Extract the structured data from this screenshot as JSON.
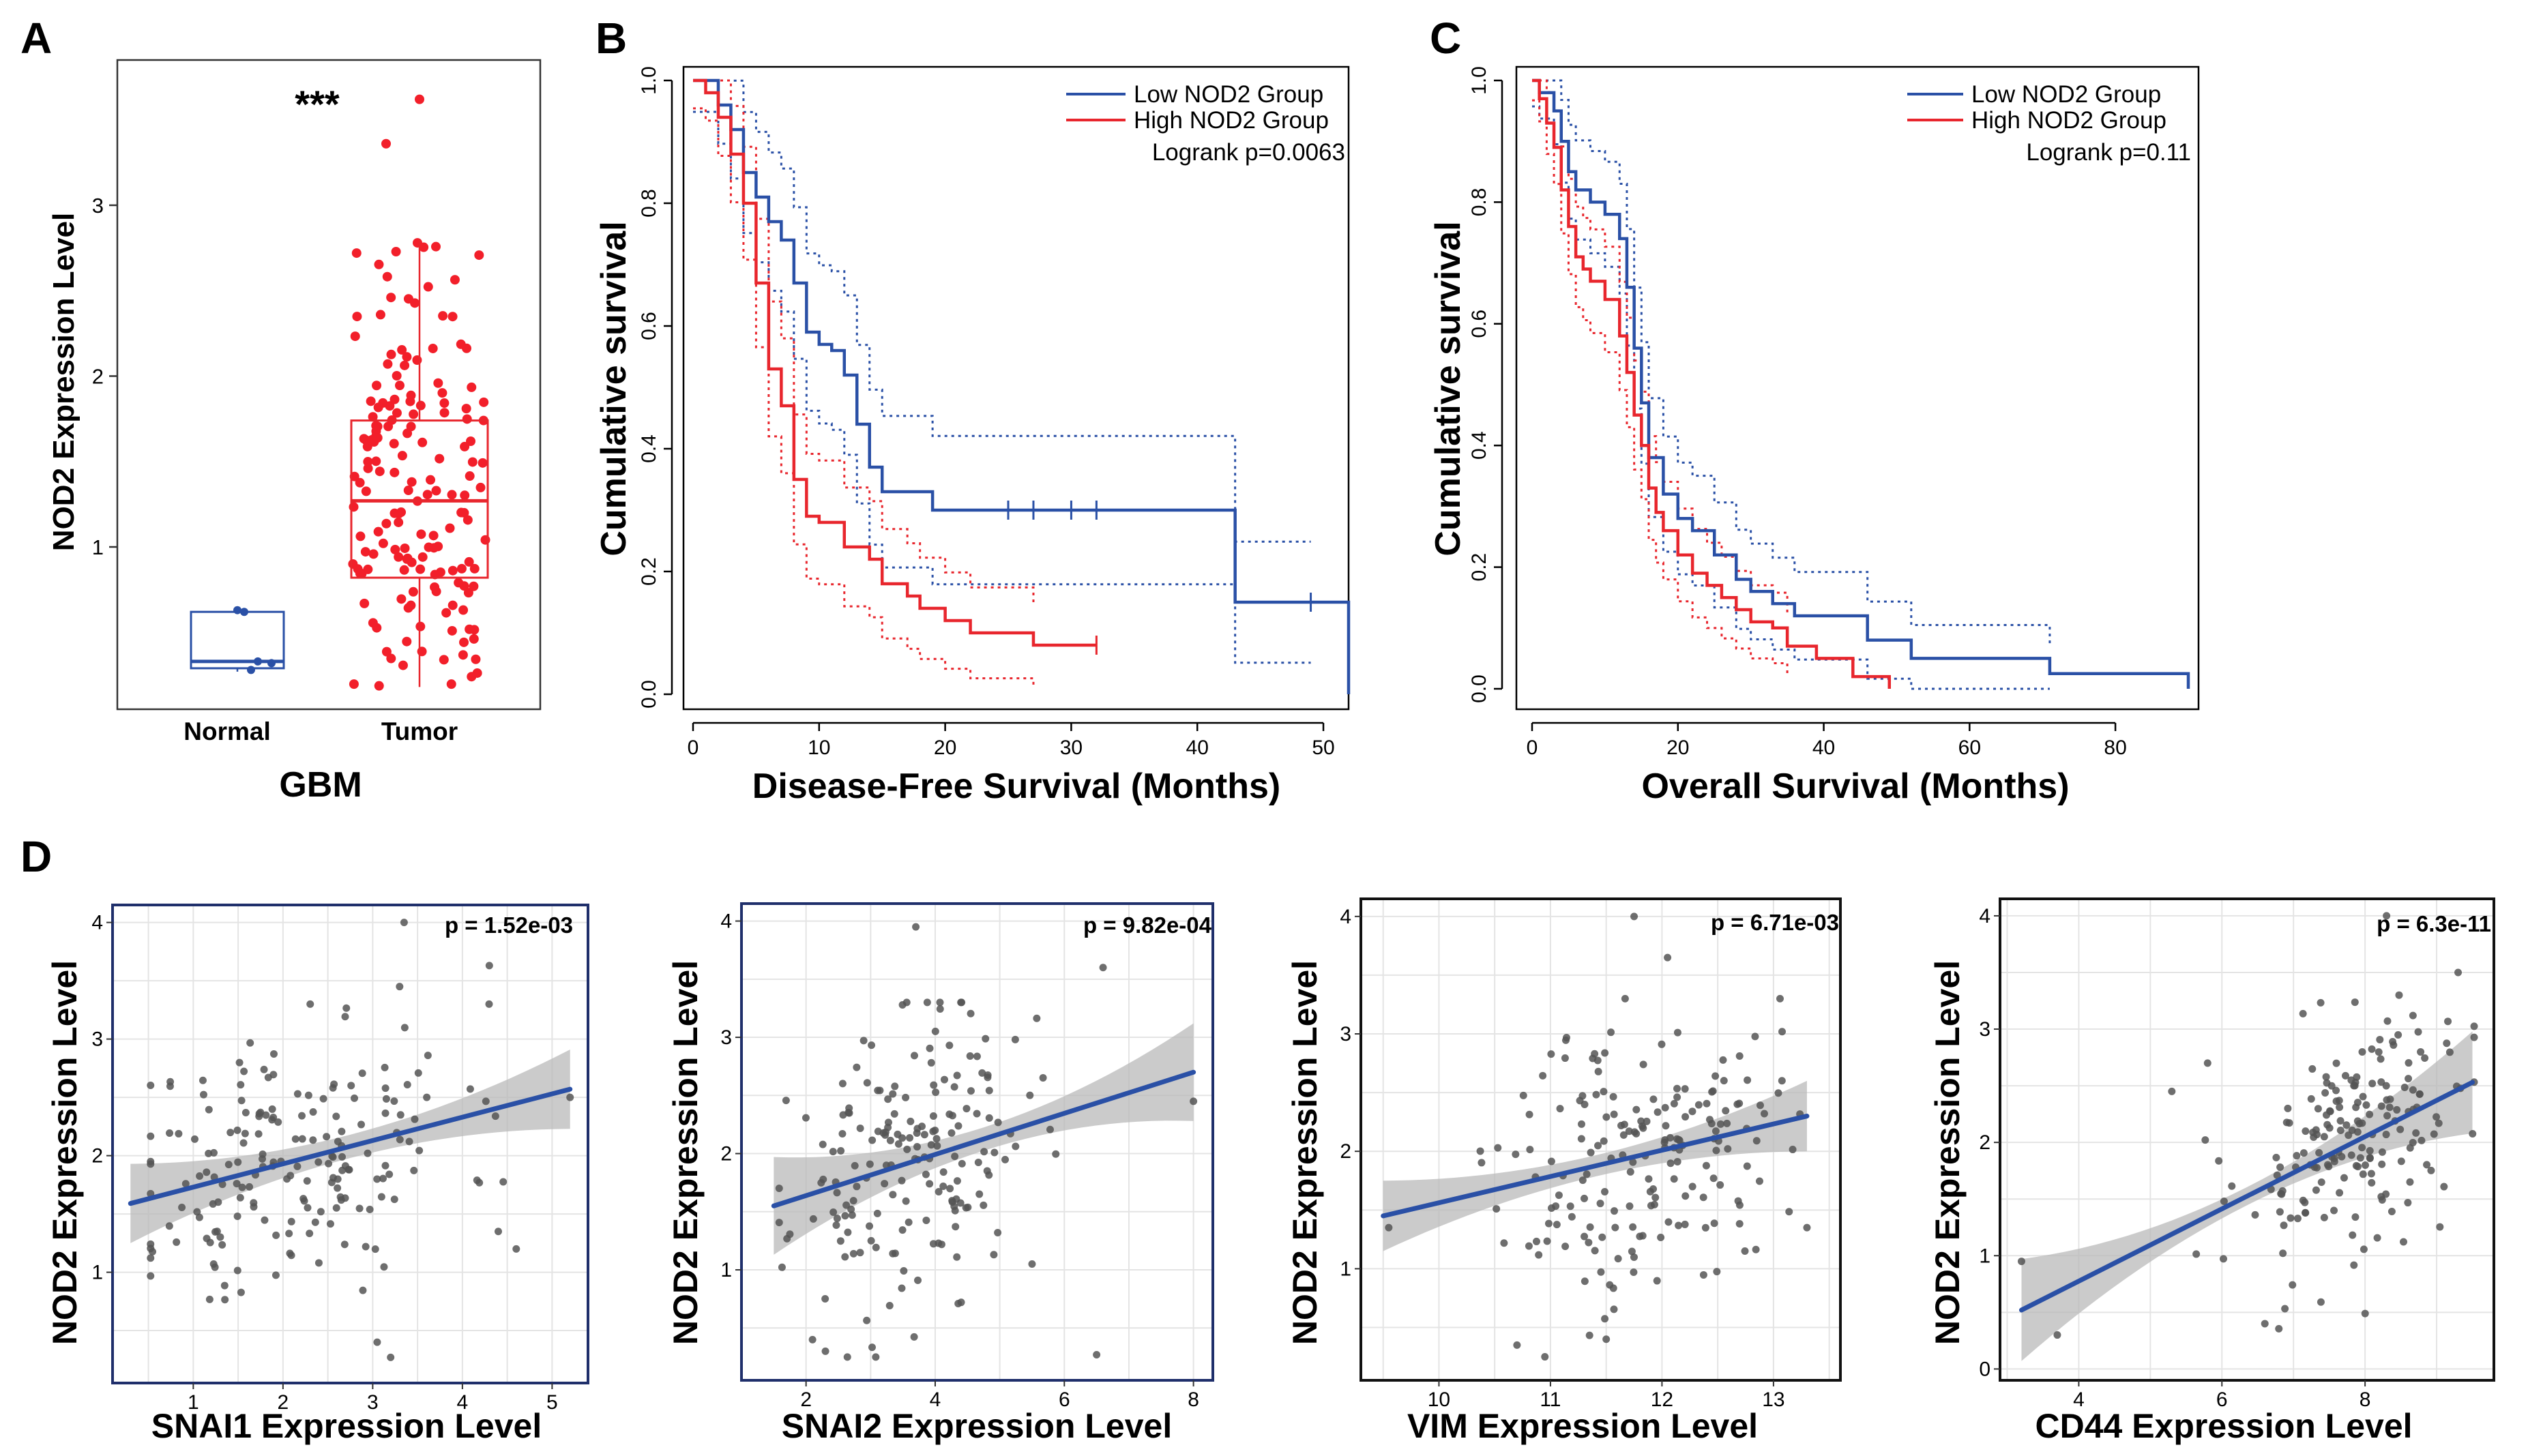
{
  "panel_letters": [
    "A",
    "B",
    "C",
    "D"
  ],
  "colors": {
    "blue": "#2a50a6",
    "red": "#e8262d",
    "dot_red": "#f21f2a",
    "dot_gray": "#555555",
    "band": "#b9b9b9",
    "grid": "#e4e4e4"
  },
  "chart_data": [
    {
      "id": "A",
      "type": "box",
      "title": "",
      "xlabel": "GBM",
      "ylabel": "NOD2 Expression Level",
      "categories": [
        "Normal",
        "Tumor"
      ],
      "significance": "***",
      "ylim": [
        0.05,
        3.85
      ],
      "yticks": [
        1,
        2,
        3
      ],
      "boxes": [
        {
          "name": "Normal",
          "min": 0.27,
          "q1": 0.29,
          "median": 0.33,
          "q3": 0.62,
          "max": 0.62,
          "color": "#2a50a6"
        },
        {
          "name": "Tumor",
          "min": 0.18,
          "q1": 0.82,
          "median": 1.27,
          "q3": 1.74,
          "max": 2.8,
          "color": "#e8262d"
        }
      ]
    },
    {
      "id": "B",
      "type": "survival",
      "xlabel": "Disease-Free Survival (Months)",
      "ylabel": "Cumulative survival",
      "xlim": [
        0,
        52
      ],
      "ylim": [
        0,
        1
      ],
      "xticks": [
        0,
        10,
        20,
        30,
        40,
        50
      ],
      "yticks": [
        0.0,
        0.2,
        0.4,
        0.6,
        0.8,
        1.0
      ],
      "pvalue": "Logrank p=0.0063",
      "series": [
        {
          "name": "Low NOD2 Group",
          "color": "#2a50a6",
          "times": [
            0,
            2,
            3,
            4,
            5,
            6,
            7,
            8,
            9,
            10,
            11,
            12,
            13,
            14,
            15,
            19,
            43,
            52
          ],
          "surv": [
            1,
            0.96,
            0.92,
            0.85,
            0.81,
            0.77,
            0.74,
            0.67,
            0.59,
            0.57,
            0.56,
            0.52,
            0.44,
            0.37,
            0.33,
            0.3,
            0.15,
            0.0
          ],
          "censor_t": [
            25,
            27,
            30,
            32,
            49
          ],
          "censor_s": [
            0.3,
            0.3,
            0.3,
            0.3,
            0.15
          ]
        },
        {
          "name": "High NOD2 Group",
          "color": "#e8262d",
          "times": [
            0,
            1,
            2,
            3,
            4,
            5,
            6,
            7,
            8,
            9,
            10,
            12,
            14,
            15,
            17,
            18,
            20,
            22,
            27,
            32
          ],
          "surv": [
            1,
            0.98,
            0.94,
            0.88,
            0.8,
            0.67,
            0.53,
            0.47,
            0.35,
            0.29,
            0.28,
            0.24,
            0.22,
            0.18,
            0.16,
            0.14,
            0.12,
            0.1,
            0.08,
            0.08
          ],
          "censor_t": [
            32
          ],
          "censor_s": [
            0.08
          ]
        }
      ]
    },
    {
      "id": "C",
      "type": "survival",
      "xlabel": "Overall Survival (Months)",
      "ylabel": "Cumulative  survival",
      "xlim": [
        0,
        90
      ],
      "ylim": [
        0,
        1
      ],
      "xticks": [
        0,
        20,
        40,
        60,
        80
      ],
      "yticks": [
        0.0,
        0.2,
        0.4,
        0.6,
        0.8,
        1.0
      ],
      "pvalue": "Logrank p=0.11",
      "series": [
        {
          "name": "Low NOD2 Group",
          "color": "#2a50a6",
          "times": [
            0,
            1,
            3,
            4,
            5,
            6,
            8,
            10,
            12,
            13,
            14,
            15,
            16,
            18,
            20,
            22,
            25,
            28,
            30,
            33,
            36,
            46,
            52,
            71,
            90
          ],
          "surv": [
            1,
            0.98,
            0.95,
            0.9,
            0.85,
            0.82,
            0.8,
            0.78,
            0.74,
            0.66,
            0.56,
            0.47,
            0.38,
            0.32,
            0.28,
            0.26,
            0.22,
            0.18,
            0.16,
            0.14,
            0.12,
            0.08,
            0.05,
            0.025,
            0.0
          ],
          "censor_t": [],
          "censor_s": []
        },
        {
          "name": "High NOD2 Group",
          "color": "#e8262d",
          "times": [
            0,
            1,
            2,
            3,
            4,
            5,
            6,
            7,
            8,
            10,
            12,
            13,
            14,
            15,
            16,
            17,
            18,
            20,
            22,
            24,
            26,
            28,
            30,
            33,
            35,
            39,
            44,
            49
          ],
          "surv": [
            1,
            0.97,
            0.93,
            0.89,
            0.82,
            0.76,
            0.71,
            0.69,
            0.67,
            0.64,
            0.58,
            0.52,
            0.45,
            0.4,
            0.33,
            0.29,
            0.26,
            0.22,
            0.19,
            0.17,
            0.15,
            0.13,
            0.11,
            0.1,
            0.07,
            0.05,
            0.02,
            0.0
          ],
          "censor_t": [],
          "censor_s": []
        }
      ]
    },
    {
      "id": "D1",
      "type": "scatter",
      "xlabel": "SNAI1 Expression Level",
      "ylabel": "NOD2 Expression Level",
      "pvalue": "p = 1.52e-03",
      "xlim": [
        0.1,
        5.4
      ],
      "ylim": [
        0.05,
        4.15
      ],
      "xticks": [
        1,
        2,
        3,
        4,
        5
      ],
      "yticks": [
        1,
        2,
        3,
        4
      ],
      "fit": {
        "x0": 0.3,
        "y0": 1.59,
        "x1": 5.2,
        "y1": 2.57
      },
      "ci_halfwidth": {
        "ends": 0.34,
        "mid": 0.1
      },
      "n_points": 180,
      "seed": 11,
      "x_mean": 2.1,
      "x_sd": 0.95,
      "resid_sd": 0.6,
      "outliers": [
        [
          3.35,
          4.0
        ],
        [
          4.3,
          3.63
        ],
        [
          3.3,
          3.45
        ],
        [
          3.2,
          0.27
        ],
        [
          3.05,
          0.4
        ],
        [
          5.2,
          2.5
        ],
        [
          4.6,
          1.2
        ],
        [
          4.4,
          1.35
        ]
      ]
    },
    {
      "id": "D2",
      "type": "scatter",
      "xlabel": "SNAI2 Expression Level",
      "ylabel": "NOD2 Expression Level",
      "pvalue": "p = 9.82e-04",
      "xlim": [
        1.0,
        8.3
      ],
      "ylim": [
        0.05,
        4.15
      ],
      "xticks": [
        2,
        4,
        6,
        8
      ],
      "yticks": [
        1,
        2,
        3,
        4
      ],
      "fit": {
        "x0": 1.5,
        "y0": 1.55,
        "x1": 8.0,
        "y1": 2.7
      },
      "ci_halfwidth": {
        "ends": 0.42,
        "mid": 0.1
      },
      "n_points": 180,
      "seed": 23,
      "x_mean": 3.6,
      "x_sd": 0.9,
      "resid_sd": 0.6,
      "outliers": [
        [
          3.7,
          3.95
        ],
        [
          6.6,
          3.6
        ],
        [
          8.0,
          2.45
        ],
        [
          6.5,
          0.27
        ],
        [
          2.3,
          0.3
        ],
        [
          2.1,
          0.4
        ],
        [
          5.5,
          1.05
        ]
      ]
    },
    {
      "id": "D3",
      "type": "scatter",
      "xlabel": "VIM Expression Level",
      "ylabel": "NOD2 Expression Level",
      "pvalue": "p = 6.71e-03",
      "xlim": [
        9.3,
        13.6
      ],
      "ylim": [
        0.05,
        4.15
      ],
      "xticks": [
        10,
        11,
        12,
        13
      ],
      "yticks": [
        1,
        2,
        3,
        4
      ],
      "fit": {
        "x0": 9.5,
        "y0": 1.45,
        "x1": 13.3,
        "y1": 2.3
      },
      "ci_halfwidth": {
        "ends": 0.3,
        "mid": 0.09
      },
      "n_points": 180,
      "seed": 37,
      "x_mean": 11.8,
      "x_sd": 0.6,
      "resid_sd": 0.6,
      "outliers": [
        [
          11.75,
          4.0
        ],
        [
          12.05,
          3.65
        ],
        [
          9.55,
          1.35
        ],
        [
          13.3,
          1.35
        ],
        [
          10.7,
          0.35
        ],
        [
          10.95,
          0.25
        ],
        [
          11.5,
          0.4
        ]
      ]
    },
    {
      "id": "D4",
      "type": "scatter",
      "xlabel": "CD44 Expression Level",
      "ylabel": "NOD2 Expression Level",
      "pvalue": "p = 6.3e-11",
      "xlim": [
        2.9,
        9.8
      ],
      "ylim": [
        -0.1,
        4.15
      ],
      "xticks": [
        4,
        6,
        8
      ],
      "yticks": [
        0,
        1,
        2,
        3,
        4
      ],
      "fit": {
        "x0": 3.2,
        "y0": 0.52,
        "x1": 9.5,
        "y1": 2.53
      },
      "ci_halfwidth": {
        "ends": 0.45,
        "mid": 0.08
      },
      "n_points": 180,
      "seed": 53,
      "x_mean": 7.9,
      "x_sd": 0.85,
      "resid_sd": 0.55,
      "outliers": [
        [
          8.3,
          4.0
        ],
        [
          3.2,
          0.95
        ],
        [
          3.7,
          0.3
        ],
        [
          5.3,
          2.45
        ],
        [
          5.8,
          2.7
        ],
        [
          9.3,
          3.5
        ],
        [
          6.6,
          0.4
        ]
      ]
    }
  ]
}
